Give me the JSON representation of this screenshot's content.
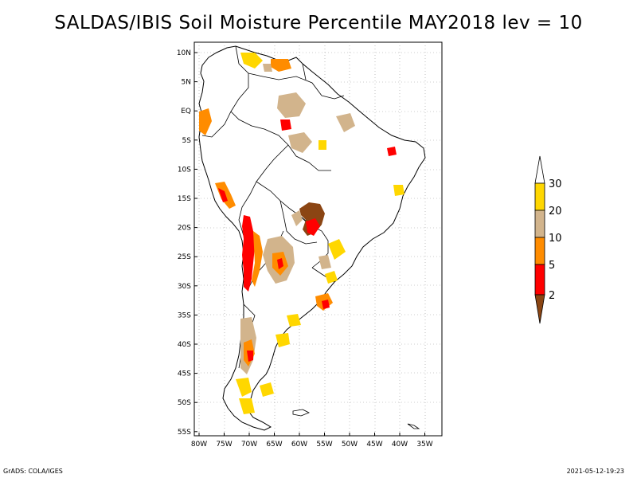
{
  "title": "SALDAS/IBIS Soil Moisture Percentile MAY2018 lev = 10",
  "map": {
    "lat_ticks": [
      "10N",
      "5N",
      "EQ",
      "5S",
      "10S",
      "15S",
      "20S",
      "25S",
      "30S",
      "35S",
      "40S",
      "45S",
      "50S",
      "55S"
    ],
    "lon_ticks": [
      "80W",
      "75W",
      "70W",
      "65W",
      "60W",
      "55W",
      "50W",
      "45W",
      "40W",
      "35W"
    ],
    "grid": "dotted"
  },
  "colorbar": {
    "labels": [
      "2",
      "5",
      "10",
      "20",
      "30"
    ],
    "colors": {
      "lt2": "#8b4513",
      "2_5": "#ff0000",
      "5_10": "#ff8c00",
      "10_20": "#d2b48c",
      "20_30": "#ffd700",
      "gt30": "#ffffff"
    }
  },
  "footer": {
    "left": "GrADS: COLA/IGES",
    "right": "2021-05-12-19:23"
  }
}
